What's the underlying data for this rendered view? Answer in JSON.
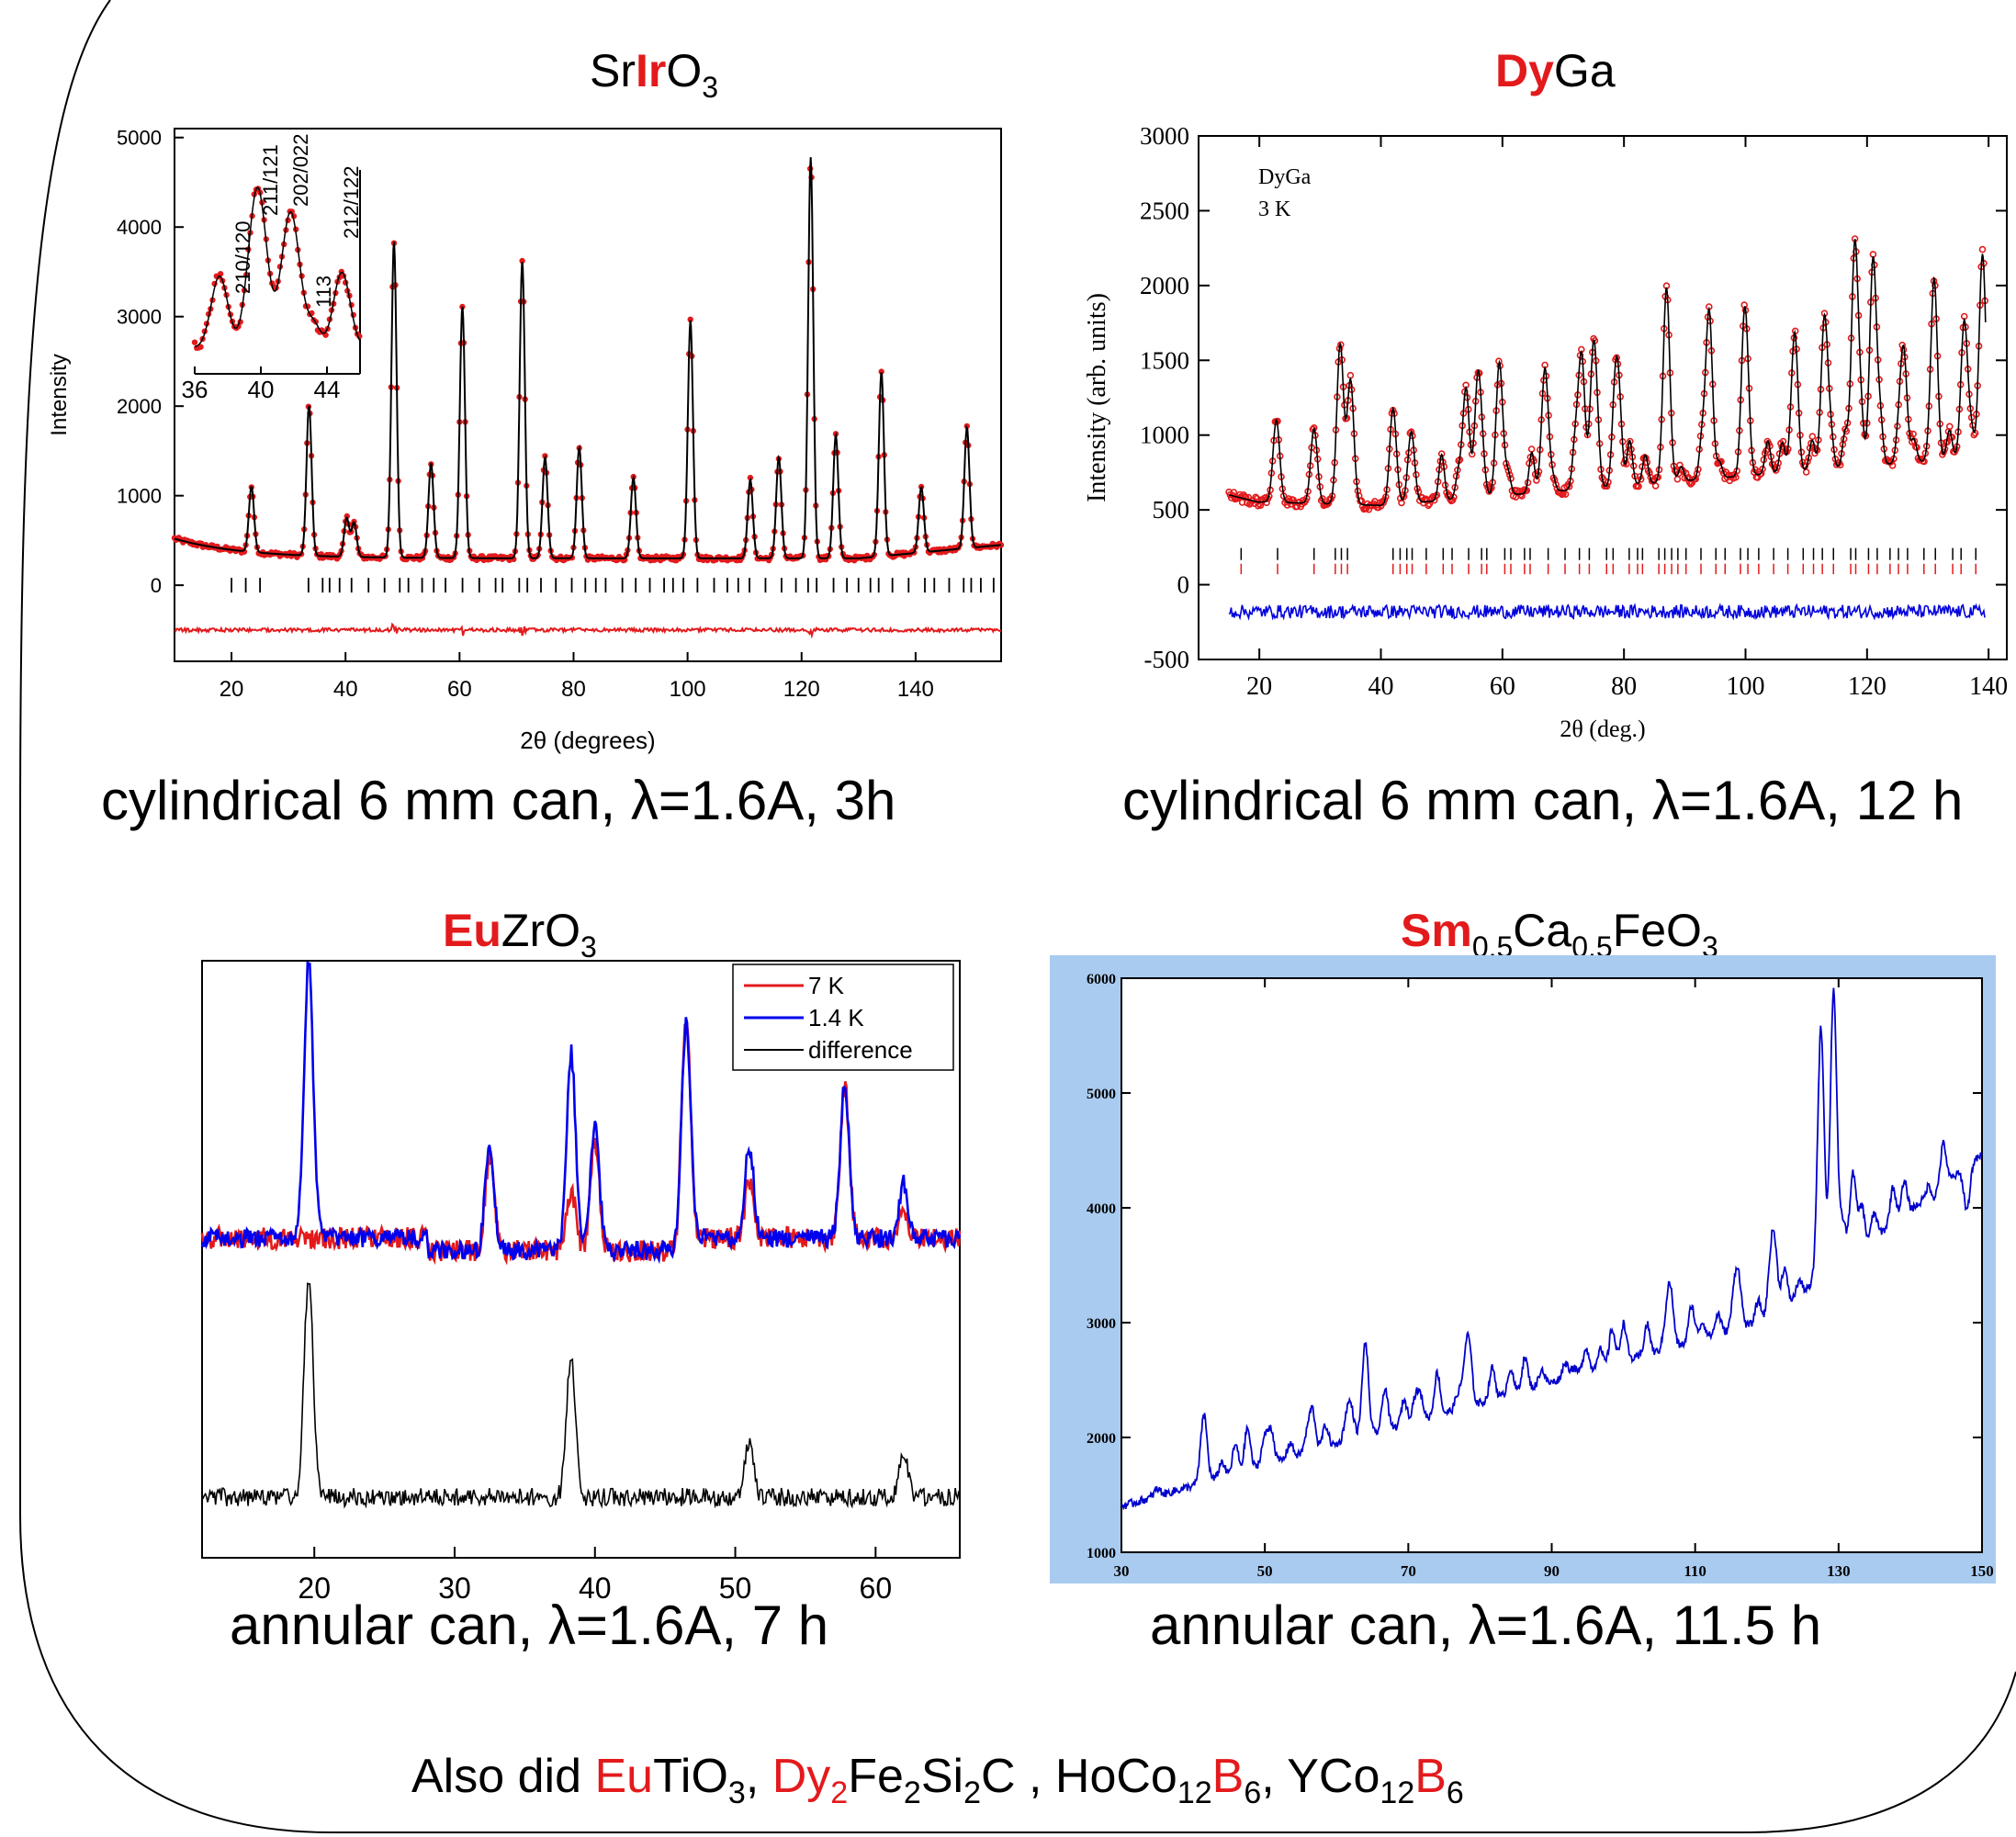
{
  "panels": [
    {
      "title_parts": [
        "Sr",
        "Ir",
        "O",
        "3"
      ],
      "caption": "cylindrical 6 mm can, λ=1.6A, 3h",
      "chart_data": {
        "type": "scatter",
        "xlabel": "2θ (degrees)",
        "ylabel": "Intensity",
        "xlim": [
          10,
          155
        ],
        "ylim": [
          -850,
          5100
        ],
        "x_ticks": [
          "20",
          "40",
          "60",
          "80",
          "100",
          "120",
          "140"
        ],
        "y_ticks": [
          "0",
          "1000",
          "2000",
          "3000",
          "4000",
          "5000"
        ],
        "colors": {
          "observed": "#e31a1c",
          "calculated": "#000000",
          "difference": "#e31a1c"
        },
        "peaks": [
          {
            "x": 23.5,
            "y": 1050
          },
          {
            "x": 33.6,
            "y": 2000
          },
          {
            "x": 40.2,
            "y": 750
          },
          {
            "x": 41.5,
            "y": 700
          },
          {
            "x": 48.5,
            "y": 3850
          },
          {
            "x": 55.0,
            "y": 1380
          },
          {
            "x": 60.5,
            "y": 3130
          },
          {
            "x": 71.0,
            "y": 3640
          },
          {
            "x": 75.0,
            "y": 1450
          },
          {
            "x": 81.0,
            "y": 1560
          },
          {
            "x": 90.5,
            "y": 1220
          },
          {
            "x": 100.5,
            "y": 2980
          },
          {
            "x": 111.0,
            "y": 1200
          },
          {
            "x": 116.0,
            "y": 1450
          },
          {
            "x": 121.6,
            "y": 4800
          },
          {
            "x": 126.0,
            "y": 1700
          },
          {
            "x": 134.0,
            "y": 2380
          },
          {
            "x": 141.0,
            "y": 1050
          },
          {
            "x": 149.0,
            "y": 1670
          }
        ],
        "inset": {
          "x_ticks": [
            "36",
            "40",
            "44"
          ],
          "xlim": [
            36,
            46
          ],
          "peak_labels": [
            "210/120",
            "211/121",
            "202/022",
            "113",
            "212/122"
          ]
        }
      }
    },
    {
      "title_parts": [
        "Dy",
        "Ga"
      ],
      "caption": "cylindrical 6 mm can, λ=1.6A, 12 h",
      "chart_data": {
        "type": "scatter",
        "xlabel": "2θ (deg.)",
        "ylabel": "Intensity (arb. units)",
        "xlim": [
          10,
          143
        ],
        "ylim": [
          -500,
          3000
        ],
        "x_ticks": [
          "20",
          "40",
          "60",
          "80",
          "100",
          "120",
          "140"
        ],
        "y_ticks": [
          "-500",
          "0",
          "500",
          "1000",
          "1500",
          "2000",
          "2500",
          "3000"
        ],
        "annotations": [
          "DyGa",
          "3 K"
        ],
        "colors": {
          "observed": "#e31a1c",
          "calculated": "#000000",
          "difference": "#0000dd"
        },
        "peaks": [
          {
            "x": 22.8,
            "y": 1000
          },
          {
            "x": 29.0,
            "y": 950
          },
          {
            "x": 33.3,
            "y": 1520
          },
          {
            "x": 35.0,
            "y": 1280
          },
          {
            "x": 42.0,
            "y": 1100
          },
          {
            "x": 45.0,
            "y": 950
          },
          {
            "x": 54.0,
            "y": 1250
          },
          {
            "x": 56.0,
            "y": 1350
          },
          {
            "x": 59.5,
            "y": 1430
          },
          {
            "x": 67.0,
            "y": 1400
          },
          {
            "x": 73.0,
            "y": 1500
          },
          {
            "x": 75.0,
            "y": 1550
          },
          {
            "x": 79.0,
            "y": 1350
          },
          {
            "x": 87.0,
            "y": 1880
          },
          {
            "x": 94.0,
            "y": 1820
          },
          {
            "x": 100.0,
            "y": 1700
          },
          {
            "x": 108.0,
            "y": 1500
          },
          {
            "x": 113.0,
            "y": 1800
          },
          {
            "x": 118.0,
            "y": 2300
          },
          {
            "x": 121.0,
            "y": 2200
          },
          {
            "x": 126.0,
            "y": 1600
          },
          {
            "x": 131.0,
            "y": 1900
          },
          {
            "x": 136.0,
            "y": 1800
          },
          {
            "x": 139.0,
            "y": 2250
          }
        ]
      }
    },
    {
      "title_parts": [
        "Eu",
        "ZrO",
        "3"
      ],
      "caption": "annular can, λ=1.6A, 7 h",
      "chart_data": {
        "type": "line",
        "xlim": [
          12,
          66
        ],
        "x_ticks": [
          "20",
          "30",
          "40",
          "50",
          "60"
        ],
        "series": [
          {
            "name": "7 K",
            "color": "#e31a1c",
            "peaks": [
              [
                32.5,
                0.35
              ],
              [
                38.3,
                0.22
              ],
              [
                40.0,
                0.4
              ],
              [
                46.5,
                0.8
              ],
              [
                51.0,
                0.2
              ],
              [
                57.8,
                0.55
              ],
              [
                62.0,
                0.1
              ]
            ]
          },
          {
            "name": "1.4 K",
            "color": "#0000ee",
            "peaks": [
              [
                19.6,
                1.0
              ],
              [
                32.5,
                0.38
              ],
              [
                38.3,
                0.72
              ],
              [
                40.0,
                0.45
              ],
              [
                46.5,
                0.78
              ],
              [
                51.0,
                0.33
              ],
              [
                57.8,
                0.55
              ],
              [
                62.0,
                0.2
              ]
            ]
          },
          {
            "name": "difference",
            "color": "#000000",
            "peaks": [
              [
                19.6,
                1.0
              ],
              [
                38.3,
                0.64
              ],
              [
                51.0,
                0.25
              ],
              [
                62.0,
                0.2
              ]
            ]
          }
        ]
      }
    },
    {
      "title_parts": [
        "Sm",
        "0.5",
        "Ca",
        "0.5",
        "FeO",
        "3"
      ],
      "caption": "annular can, λ=1.6A, 11.5 h",
      "chart_data": {
        "type": "line",
        "xlim": [
          30,
          150
        ],
        "ylim": [
          1000,
          6000
        ],
        "x_ticks": [
          "30",
          "50",
          "70",
          "90",
          "110",
          "130",
          "150"
        ],
        "y_ticks": [
          "1000",
          "2000",
          "3000",
          "4000",
          "5000",
          "6000"
        ],
        "colors": {
          "line": "#0000cc",
          "background": "#a9cbf0"
        },
        "peaks": [
          {
            "x": 35.0,
            "y": 1550
          },
          {
            "x": 41.5,
            "y": 2200
          },
          {
            "x": 50.0,
            "y": 2000
          },
          {
            "x": 56.0,
            "y": 2050
          },
          {
            "x": 62.0,
            "y": 2250
          },
          {
            "x": 64.0,
            "y": 2650
          },
          {
            "x": 71.0,
            "y": 2350
          },
          {
            "x": 78.0,
            "y": 2650
          },
          {
            "x": 86.0,
            "y": 2450
          },
          {
            "x": 93.0,
            "y": 2600
          },
          {
            "x": 100.0,
            "y": 2800
          },
          {
            "x": 106.5,
            "y": 3300
          },
          {
            "x": 111.0,
            "y": 3000
          },
          {
            "x": 116.0,
            "y": 3400
          },
          {
            "x": 121.0,
            "y": 3700
          },
          {
            "x": 127.5,
            "y": 5300
          },
          {
            "x": 129.3,
            "y": 5900
          },
          {
            "x": 132.0,
            "y": 4300
          },
          {
            "x": 139.0,
            "y": 4000
          },
          {
            "x": 143.0,
            "y": 4000
          },
          {
            "x": 148.0,
            "y": 3900
          }
        ]
      }
    }
  ],
  "footer": {
    "prefix": "Also did ",
    "parts": [
      {
        "t": "Eu",
        "c": "red"
      },
      {
        "t": "TiO"
      },
      {
        "t": "3",
        "sub": true
      },
      {
        "t": ", "
      },
      {
        "t": "Dy",
        "c": "red"
      },
      {
        "t": "2",
        "sub": true,
        "c": "red"
      },
      {
        "t": "Fe"
      },
      {
        "t": "2",
        "sub": true
      },
      {
        "t": "Si"
      },
      {
        "t": "2",
        "sub": true
      },
      {
        "t": "C , HoCo"
      },
      {
        "t": "12",
        "sub": true
      },
      {
        "t": "B",
        "c": "red"
      },
      {
        "t": "6",
        "sub": true
      },
      {
        "t": ", YCo"
      },
      {
        "t": "12",
        "sub": true
      },
      {
        "t": "B",
        "c": "red"
      },
      {
        "t": "6",
        "sub": true
      }
    ]
  }
}
